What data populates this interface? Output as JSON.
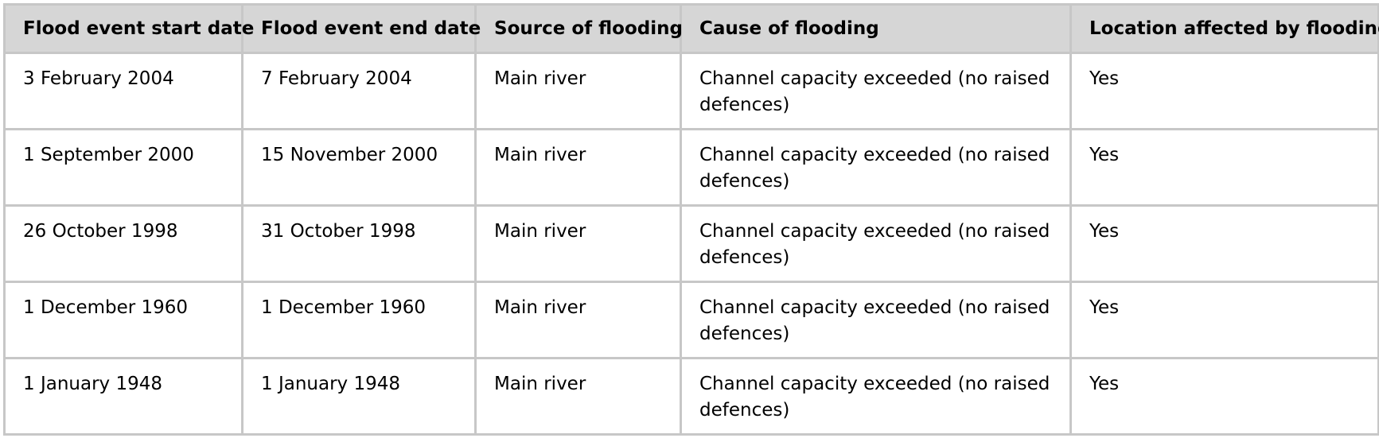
{
  "table": {
    "headers": [
      "Flood event start date",
      "Flood event end date",
      "Source of flooding",
      "Cause of flooding",
      "Location affected by flooding"
    ],
    "rows": [
      [
        "3 February 2004",
        "7 February 2004",
        "Main river",
        "Channel capacity exceeded (no raised defences)",
        "Yes"
      ],
      [
        "1 September 2000",
        "15 November 2000",
        "Main river",
        "Channel capacity exceeded (no raised defences)",
        "Yes"
      ],
      [
        "26 October 1998",
        "31 October 1998",
        "Main river",
        "Channel capacity exceeded (no raised defences)",
        "Yes"
      ],
      [
        "1 December 1960",
        "1 December 1960",
        "Main river",
        "Channel capacity exceeded (no raised defences)",
        "Yes"
      ],
      [
        "1 January 1948",
        "1 January 1948",
        "Main river",
        "Channel capacity exceeded (no raised defences)",
        "Yes"
      ]
    ]
  }
}
